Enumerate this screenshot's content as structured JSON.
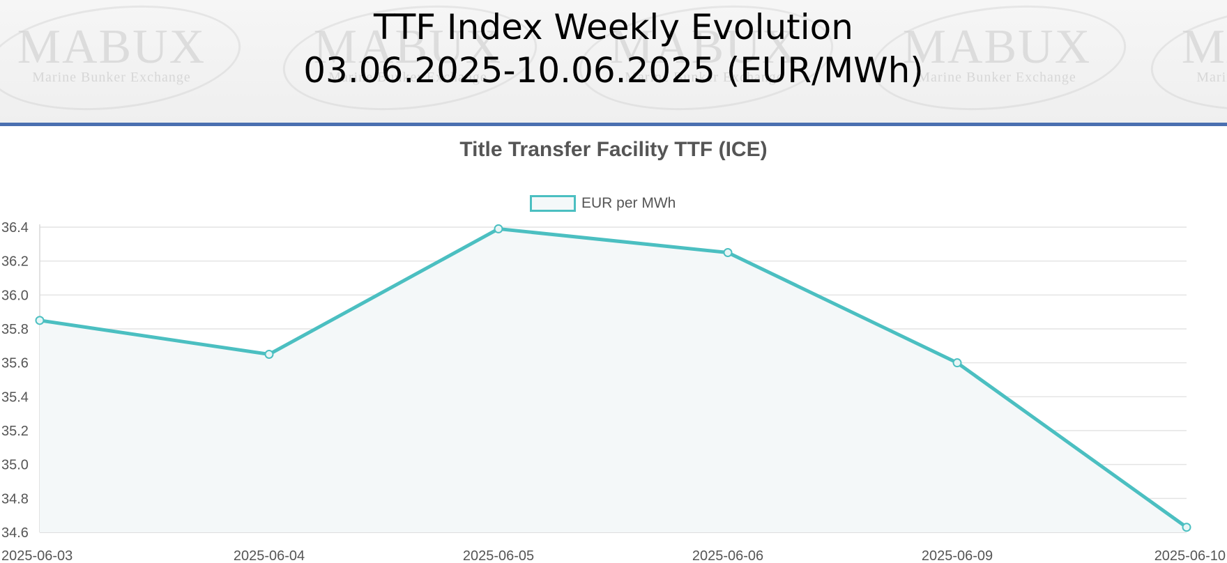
{
  "header": {
    "title_line1": "TTF Index Weekly Evolution",
    "title_line2": "03.06.2025-10.06.2025 (EUR/MWh)",
    "watermark_word": "MABUX",
    "watermark_sub": "Marine Bunker Exchange",
    "rule_color": "#4a6fb0"
  },
  "chart_data": {
    "type": "line",
    "title": "Title Transfer Facility TTF (ICE)",
    "categories": [
      "2025-06-03",
      "2025-06-04",
      "2025-06-05",
      "2025-06-06",
      "2025-06-09",
      "2025-06-10"
    ],
    "series": [
      {
        "name": "EUR per MWh",
        "values": [
          35.85,
          35.65,
          36.39,
          36.25,
          35.6,
          34.63
        ],
        "color": "#4bbfc1",
        "fill": "#f4f8f9"
      }
    ],
    "yticks": [
      "34.6",
      "34.8",
      "35.0",
      "35.2",
      "35.4",
      "35.6",
      "35.8",
      "36.0",
      "36.2",
      "36.4"
    ],
    "ylim": [
      34.6,
      36.4
    ],
    "grid": true,
    "legend": "top-center"
  }
}
